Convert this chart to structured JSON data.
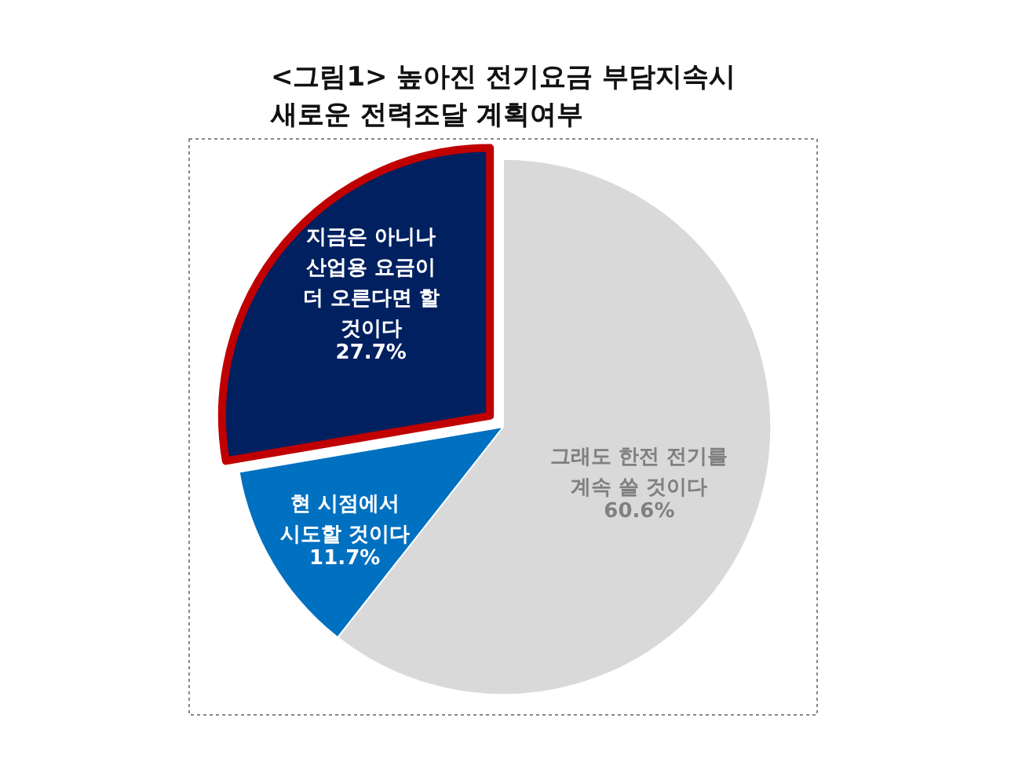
{
  "chart_data": {
    "type": "pie",
    "title": "<그림1> 높아진 전기요금 부담지속시\n새로운 전력조달 계획여부",
    "categories": [
      "그래도 한전 전기를\n계속 쓸 것이다",
      "현 시점에서\n시도할 것이다",
      "지금은 아니나\n산업용 요금이\n더 오른다면 할\n것이다"
    ],
    "values": [
      60.6,
      11.7,
      27.7
    ],
    "colors": [
      "#d9d9d9",
      "#0070c0",
      "#002060"
    ],
    "value_labels": [
      "60.6%",
      "11.7%",
      "27.7%"
    ]
  }
}
